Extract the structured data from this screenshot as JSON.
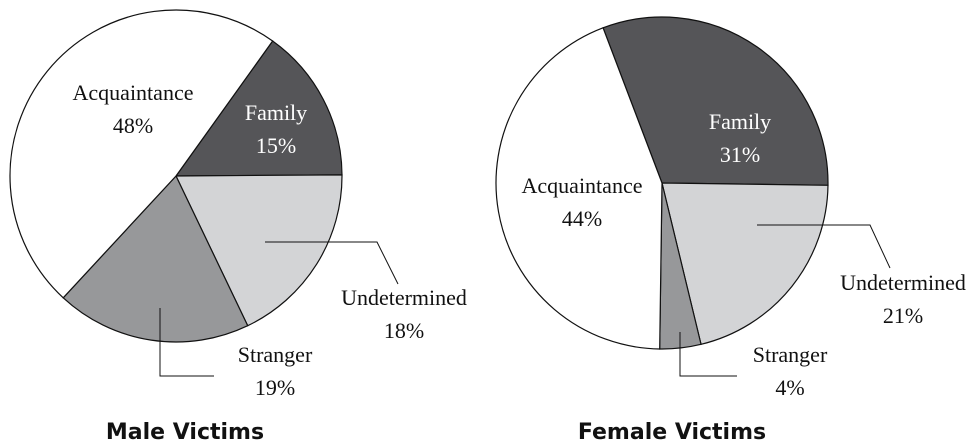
{
  "chart_data": [
    {
      "type": "pie",
      "title": "Male Victims",
      "categories": [
        "Family",
        "Undetermined",
        "Stranger",
        "Acquaintance"
      ],
      "values": [
        15,
        18,
        19,
        48
      ],
      "value_labels": [
        "15%",
        "18%",
        "19%",
        "48%"
      ],
      "colors": [
        "#555558",
        "#d3d4d6",
        "#97989a",
        "#ffffff"
      ]
    },
    {
      "type": "pie",
      "title": "Female Victims",
      "categories": [
        "Family",
        "Undetermined",
        "Stranger",
        "Acquaintance"
      ],
      "values": [
        31,
        21,
        4,
        44
      ],
      "value_labels": [
        "31%",
        "21%",
        "4%",
        "44%"
      ],
      "colors": [
        "#555558",
        "#d3d4d6",
        "#97989a",
        "#ffffff"
      ]
    }
  ]
}
